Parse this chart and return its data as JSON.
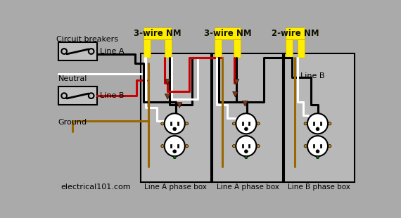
{
  "bg": "#aaaaaa",
  "yellow": "#ffee00",
  "black": "#000000",
  "white": "#ffffff",
  "red": "#cc0000",
  "ground_color": "#996600",
  "box_fill": "#b8b8b8",
  "brown": "#7a3a1a",
  "green": "#006600",
  "orange_screw": "#cc8800",
  "label_cb": "Circuit breakers",
  "label_lineA": "Line A",
  "label_neutral": "Neutral",
  "label_lineB": "Line B",
  "label_ground": "Ground",
  "label_nm1": "3-wire NM",
  "label_nm2": "3-wire NM",
  "label_nm3": "2-wire NM",
  "label_box1": "Line A phase box",
  "label_box2": "Line A phase box",
  "label_box3": "Line B phase box",
  "label_lineb_box3": "Line B",
  "watermark": "electrical101.com"
}
